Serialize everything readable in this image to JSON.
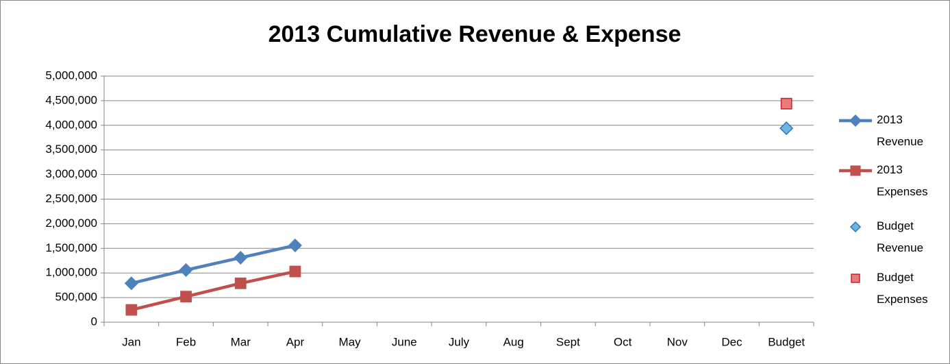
{
  "chart_data": {
    "type": "line",
    "title": "2013 Cumulative Revenue & Expense",
    "categories": [
      "Jan",
      "Feb",
      "Mar",
      "Apr",
      "May",
      "June",
      "July",
      "Aug",
      "Sept",
      "Oct",
      "Nov",
      "Dec",
      "Budget"
    ],
    "series": [
      {
        "name": "2013 Revenue",
        "color": "#4f81bd",
        "marker": "diamond",
        "line": true,
        "values": [
          790000,
          1060000,
          1310000,
          1560000,
          null,
          null,
          null,
          null,
          null,
          null,
          null,
          null,
          null
        ]
      },
      {
        "name": "2013 Expenses",
        "color": "#c0504d",
        "marker": "square",
        "line": true,
        "values": [
          250000,
          520000,
          790000,
          1030000,
          null,
          null,
          null,
          null,
          null,
          null,
          null,
          null,
          null
        ]
      },
      {
        "name": "Budget Revenue",
        "color": "#6cb4e4",
        "stroke": "#2e75b6",
        "marker": "diamond",
        "line": false,
        "values": [
          null,
          null,
          null,
          null,
          null,
          null,
          null,
          null,
          null,
          null,
          null,
          null,
          3940000
        ]
      },
      {
        "name": "Budget Expenses",
        "color": "#e87b7b",
        "stroke": "#c0232b",
        "marker": "square",
        "line": false,
        "values": [
          null,
          null,
          null,
          null,
          null,
          null,
          null,
          null,
          null,
          null,
          null,
          null,
          4440000
        ]
      }
    ],
    "ylim": [
      0,
      5000000
    ],
    "yticks": [
      0,
      {
        "value": 500000,
        "label": "500,000"
      },
      {
        "value": 1000000,
        "label": "1,000,000"
      },
      {
        "value": 1500000,
        "label": "1,500,000"
      },
      {
        "value": 2000000,
        "label": "2,000,000"
      },
      {
        "value": 2500000,
        "label": "2,500,000"
      },
      {
        "value": 3000000,
        "label": "3,000,000"
      },
      {
        "value": 3500000,
        "label": "3,500,000"
      },
      {
        "value": 4000000,
        "label": "4,000,000"
      },
      {
        "value": 4500000,
        "label": "4,500,000"
      },
      {
        "value": 5000000,
        "label": "5,000,000"
      }
    ],
    "grid": true,
    "legend": "right"
  }
}
